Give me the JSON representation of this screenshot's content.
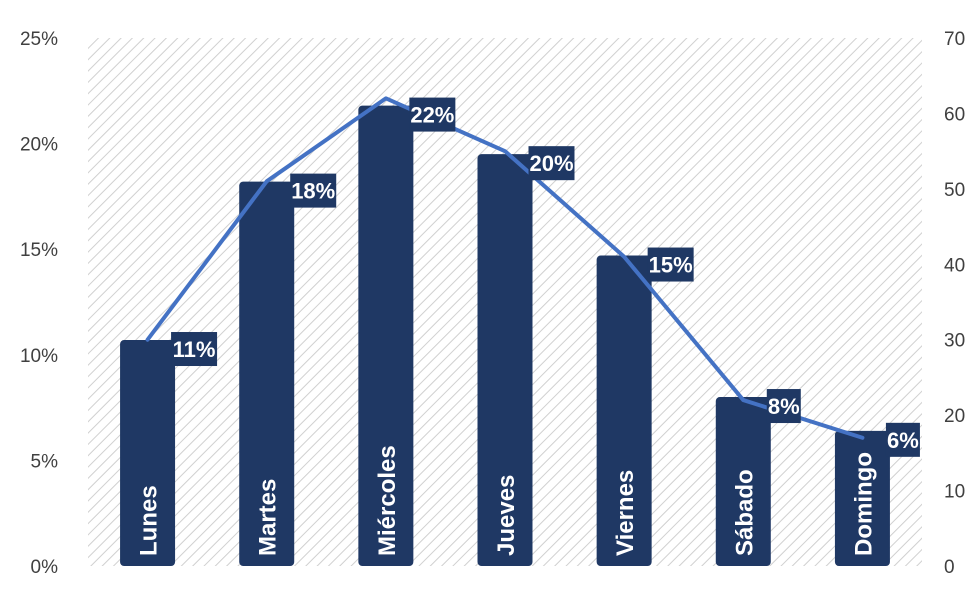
{
  "chart_data": {
    "type": "bar",
    "title": "",
    "xlabel": "",
    "ylabel": "",
    "categories": [
      "Lunes",
      "Martes",
      "Miércoles",
      "Jueves",
      "Viernes",
      "Sábado",
      "Domingo"
    ],
    "series": [
      {
        "axis": "left",
        "render": "bar",
        "values": [
          0.107,
          0.182,
          0.218,
          0.195,
          0.147,
          0.08,
          0.064
        ],
        "labels": [
          "11%",
          "18%",
          "22%",
          "20%",
          "15%",
          "8%",
          "6%"
        ]
      },
      {
        "axis": "right",
        "render": "line",
        "values": [
          30,
          51,
          62,
          55,
          41,
          22,
          17
        ]
      }
    ],
    "ylim": [
      0,
      0.25
    ],
    "ylim_right": [
      0,
      70
    ],
    "yticks_left": [
      "0%",
      "5%",
      "10%",
      "15%",
      "20%",
      "25%"
    ],
    "yticks_right": [
      "0",
      "10",
      "20",
      "30",
      "40",
      "50",
      "60",
      "70"
    ],
    "legend": "none",
    "grid": false,
    "plot_background": "diagonal-hatch",
    "colors": {
      "bar": "#1f3864",
      "line": "#4472c4",
      "label_bg": "#1f3864",
      "label_text": "#ffffff",
      "tick_text": "#404040",
      "hatch": "#d0d0d0"
    }
  }
}
